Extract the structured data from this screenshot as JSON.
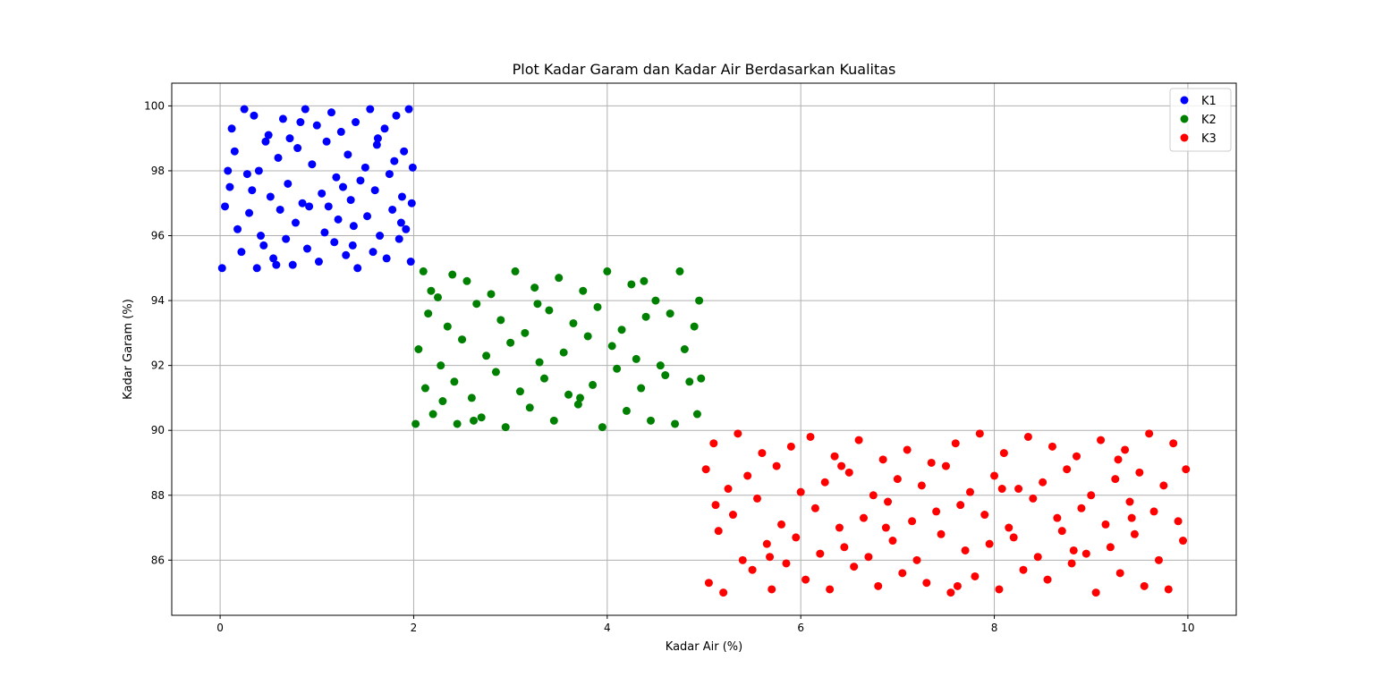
{
  "chart_data": {
    "type": "scatter",
    "title": "Plot Kadar Garam dan Kadar Air Berdasarkan Kualitas",
    "xlabel": "Kadar Air (%)",
    "ylabel": "Kadar Garam (%)",
    "xlim": [
      -0.5,
      10.5
    ],
    "ylim": [
      84.3,
      100.7
    ],
    "xticks": [
      0,
      2,
      4,
      6,
      8,
      10
    ],
    "yticks": [
      86,
      88,
      90,
      92,
      94,
      96,
      98,
      100
    ],
    "grid": true,
    "legend_position": "top-right",
    "series": [
      {
        "name": "K1",
        "color": "#0000ff",
        "points": [
          [
            0.02,
            95.0
          ],
          [
            0.05,
            96.9
          ],
          [
            0.1,
            97.5
          ],
          [
            0.12,
            99.3
          ],
          [
            0.15,
            98.6
          ],
          [
            0.18,
            96.2
          ],
          [
            0.22,
            95.5
          ],
          [
            0.25,
            99.9
          ],
          [
            0.28,
            97.9
          ],
          [
            0.3,
            96.7
          ],
          [
            0.35,
            99.7
          ],
          [
            0.38,
            95.0
          ],
          [
            0.4,
            98.0
          ],
          [
            0.42,
            96.0
          ],
          [
            0.45,
            95.7
          ],
          [
            0.5,
            99.1
          ],
          [
            0.52,
            97.2
          ],
          [
            0.55,
            95.3
          ],
          [
            0.6,
            98.4
          ],
          [
            0.62,
            96.8
          ],
          [
            0.65,
            99.6
          ],
          [
            0.68,
            95.9
          ],
          [
            0.7,
            97.6
          ],
          [
            0.72,
            99.0
          ],
          [
            0.75,
            95.1
          ],
          [
            0.78,
            96.4
          ],
          [
            0.8,
            98.7
          ],
          [
            0.85,
            97.0
          ],
          [
            0.88,
            99.9
          ],
          [
            0.9,
            95.6
          ],
          [
            0.92,
            96.9
          ],
          [
            0.95,
            98.2
          ],
          [
            1.0,
            99.4
          ],
          [
            1.02,
            95.2
          ],
          [
            1.05,
            97.3
          ],
          [
            1.08,
            96.1
          ],
          [
            1.1,
            98.9
          ],
          [
            1.15,
            99.8
          ],
          [
            1.18,
            95.8
          ],
          [
            1.2,
            97.8
          ],
          [
            1.22,
            96.5
          ],
          [
            1.25,
            99.2
          ],
          [
            1.3,
            95.4
          ],
          [
            1.32,
            98.5
          ],
          [
            1.35,
            97.1
          ],
          [
            1.38,
            96.3
          ],
          [
            1.4,
            99.5
          ],
          [
            1.42,
            95.0
          ],
          [
            1.45,
            97.7
          ],
          [
            1.5,
            98.1
          ],
          [
            1.52,
            96.6
          ],
          [
            1.55,
            99.9
          ],
          [
            1.58,
            95.5
          ],
          [
            1.6,
            97.4
          ],
          [
            1.62,
            98.8
          ],
          [
            1.65,
            96.0
          ],
          [
            1.7,
            99.3
          ],
          [
            1.72,
            95.3
          ],
          [
            1.75,
            97.9
          ],
          [
            1.78,
            96.8
          ],
          [
            1.8,
            98.3
          ],
          [
            1.82,
            99.7
          ],
          [
            1.85,
            95.9
          ],
          [
            1.88,
            97.2
          ],
          [
            1.9,
            98.6
          ],
          [
            1.92,
            96.2
          ],
          [
            1.95,
            99.9
          ],
          [
            1.97,
            95.2
          ],
          [
            1.98,
            97.0
          ],
          [
            1.99,
            98.1
          ],
          [
            0.08,
            98.0
          ],
          [
            0.33,
            97.4
          ],
          [
            0.58,
            95.1
          ],
          [
            0.83,
            99.5
          ],
          [
            1.12,
            96.9
          ],
          [
            1.37,
            95.7
          ],
          [
            1.63,
            99.0
          ],
          [
            1.87,
            96.4
          ],
          [
            0.47,
            98.9
          ],
          [
            1.27,
            97.5
          ]
        ]
      },
      {
        "name": "K2",
        "color": "#008000",
        "points": [
          [
            2.02,
            90.2
          ],
          [
            2.05,
            92.5
          ],
          [
            2.1,
            94.9
          ],
          [
            2.12,
            91.3
          ],
          [
            2.15,
            93.6
          ],
          [
            2.2,
            90.5
          ],
          [
            2.25,
            94.1
          ],
          [
            2.28,
            92.0
          ],
          [
            2.3,
            90.9
          ],
          [
            2.35,
            93.2
          ],
          [
            2.4,
            94.8
          ],
          [
            2.42,
            91.5
          ],
          [
            2.45,
            90.2
          ],
          [
            2.5,
            92.8
          ],
          [
            2.55,
            94.6
          ],
          [
            2.6,
            91.0
          ],
          [
            2.65,
            93.9
          ],
          [
            2.7,
            90.4
          ],
          [
            2.75,
            92.3
          ],
          [
            2.8,
            94.2
          ],
          [
            2.85,
            91.8
          ],
          [
            2.9,
            93.4
          ],
          [
            2.95,
            90.1
          ],
          [
            3.0,
            92.7
          ],
          [
            3.05,
            94.9
          ],
          [
            3.1,
            91.2
          ],
          [
            3.15,
            93.0
          ],
          [
            3.2,
            90.7
          ],
          [
            3.25,
            94.4
          ],
          [
            3.3,
            92.1
          ],
          [
            3.35,
            91.6
          ],
          [
            3.4,
            93.7
          ],
          [
            3.45,
            90.3
          ],
          [
            3.5,
            94.7
          ],
          [
            3.55,
            92.4
          ],
          [
            3.6,
            91.1
          ],
          [
            3.65,
            93.3
          ],
          [
            3.7,
            90.8
          ],
          [
            3.75,
            94.3
          ],
          [
            3.8,
            92.9
          ],
          [
            3.85,
            91.4
          ],
          [
            3.9,
            93.8
          ],
          [
            3.95,
            90.1
          ],
          [
            4.0,
            94.9
          ],
          [
            4.05,
            92.6
          ],
          [
            4.1,
            91.9
          ],
          [
            4.15,
            93.1
          ],
          [
            4.2,
            90.6
          ],
          [
            4.25,
            94.5
          ],
          [
            4.3,
            92.2
          ],
          [
            4.35,
            91.3
          ],
          [
            4.4,
            93.5
          ],
          [
            4.45,
            90.3
          ],
          [
            4.5,
            94.0
          ],
          [
            4.55,
            92.0
          ],
          [
            4.6,
            91.7
          ],
          [
            4.65,
            93.6
          ],
          [
            4.7,
            90.2
          ],
          [
            4.75,
            94.9
          ],
          [
            4.8,
            92.5
          ],
          [
            4.85,
            91.5
          ],
          [
            4.9,
            93.2
          ],
          [
            4.93,
            90.5
          ],
          [
            4.95,
            94.0
          ],
          [
            4.97,
            91.6
          ],
          [
            2.18,
            94.3
          ],
          [
            2.62,
            90.3
          ],
          [
            3.28,
            93.9
          ],
          [
            3.72,
            91.0
          ],
          [
            4.38,
            94.6
          ]
        ]
      },
      {
        "name": "K3",
        "color": "#ff0000",
        "points": [
          [
            5.02,
            88.8
          ],
          [
            5.05,
            85.3
          ],
          [
            5.1,
            89.6
          ],
          [
            5.15,
            86.9
          ],
          [
            5.2,
            85.0
          ],
          [
            5.25,
            88.2
          ],
          [
            5.3,
            87.4
          ],
          [
            5.35,
            89.9
          ],
          [
            5.4,
            86.0
          ],
          [
            5.45,
            88.6
          ],
          [
            5.5,
            85.7
          ],
          [
            5.55,
            87.9
          ],
          [
            5.6,
            89.3
          ],
          [
            5.65,
            86.5
          ],
          [
            5.7,
            85.1
          ],
          [
            5.75,
            88.9
          ],
          [
            5.8,
            87.1
          ],
          [
            5.85,
            85.9
          ],
          [
            5.9,
            89.5
          ],
          [
            5.95,
            86.7
          ],
          [
            6.0,
            88.1
          ],
          [
            6.05,
            85.4
          ],
          [
            6.1,
            89.8
          ],
          [
            6.15,
            87.6
          ],
          [
            6.2,
            86.2
          ],
          [
            6.25,
            88.4
          ],
          [
            6.3,
            85.1
          ],
          [
            6.35,
            89.2
          ],
          [
            6.4,
            87.0
          ],
          [
            6.45,
            86.4
          ],
          [
            6.5,
            88.7
          ],
          [
            6.55,
            85.8
          ],
          [
            6.6,
            89.7
          ],
          [
            6.65,
            87.3
          ],
          [
            6.7,
            86.1
          ],
          [
            6.75,
            88.0
          ],
          [
            6.8,
            85.2
          ],
          [
            6.85,
            89.1
          ],
          [
            6.9,
            87.8
          ],
          [
            6.95,
            86.6
          ],
          [
            7.0,
            88.5
          ],
          [
            7.05,
            85.6
          ],
          [
            7.1,
            89.4
          ],
          [
            7.15,
            87.2
          ],
          [
            7.2,
            86.0
          ],
          [
            7.25,
            88.3
          ],
          [
            7.3,
            85.3
          ],
          [
            7.35,
            89.0
          ],
          [
            7.4,
            87.5
          ],
          [
            7.45,
            86.8
          ],
          [
            7.5,
            88.9
          ],
          [
            7.55,
            85.0
          ],
          [
            7.6,
            89.6
          ],
          [
            7.65,
            87.7
          ],
          [
            7.7,
            86.3
          ],
          [
            7.75,
            88.1
          ],
          [
            7.8,
            85.5
          ],
          [
            7.85,
            89.9
          ],
          [
            7.9,
            87.4
          ],
          [
            7.95,
            86.5
          ],
          [
            8.0,
            88.6
          ],
          [
            8.05,
            85.1
          ],
          [
            8.1,
            89.3
          ],
          [
            8.15,
            87.0
          ],
          [
            8.2,
            86.7
          ],
          [
            8.25,
            88.2
          ],
          [
            8.3,
            85.7
          ],
          [
            8.35,
            89.8
          ],
          [
            8.4,
            87.9
          ],
          [
            8.45,
            86.1
          ],
          [
            8.5,
            88.4
          ],
          [
            8.55,
            85.4
          ],
          [
            8.6,
            89.5
          ],
          [
            8.65,
            87.3
          ],
          [
            8.7,
            86.9
          ],
          [
            8.75,
            88.8
          ],
          [
            8.8,
            85.9
          ],
          [
            8.85,
            89.2
          ],
          [
            8.9,
            87.6
          ],
          [
            8.95,
            86.2
          ],
          [
            9.0,
            88.0
          ],
          [
            9.05,
            85.0
          ],
          [
            9.1,
            89.7
          ],
          [
            9.15,
            87.1
          ],
          [
            9.2,
            86.4
          ],
          [
            9.25,
            88.5
          ],
          [
            9.3,
            85.6
          ],
          [
            9.35,
            89.4
          ],
          [
            9.4,
            87.8
          ],
          [
            9.45,
            86.8
          ],
          [
            9.5,
            88.7
          ],
          [
            9.55,
            85.2
          ],
          [
            9.6,
            89.9
          ],
          [
            9.65,
            87.5
          ],
          [
            9.7,
            86.0
          ],
          [
            9.75,
            88.3
          ],
          [
            9.8,
            85.1
          ],
          [
            9.85,
            89.6
          ],
          [
            9.9,
            87.2
          ],
          [
            9.95,
            86.6
          ],
          [
            9.98,
            88.8
          ],
          [
            5.12,
            87.7
          ],
          [
            6.42,
            88.9
          ],
          [
            7.62,
            85.2
          ],
          [
            8.82,
            86.3
          ],
          [
            9.42,
            87.3
          ],
          [
            5.68,
            86.1
          ],
          [
            6.88,
            87.0
          ],
          [
            8.08,
            88.2
          ],
          [
            9.28,
            89.1
          ]
        ]
      }
    ]
  }
}
